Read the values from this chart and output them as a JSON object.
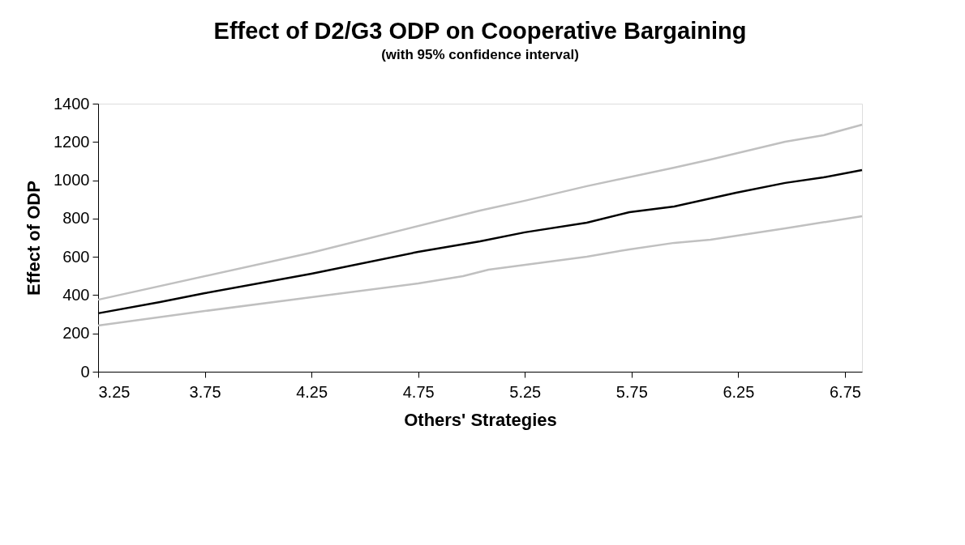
{
  "chart_data": {
    "type": "line",
    "title": "Effect of D2/G3 ODP on Cooperative Bargaining",
    "subtitle": "(with 95% confidence interval)",
    "xlabel": "Others' Strategies",
    "ylabel": "Effect of ODP",
    "xlim": [
      3.25,
      6.83
    ],
    "xticks": [
      3.25,
      3.75,
      4.25,
      4.75,
      5.25,
      5.75,
      6.25,
      6.75
    ],
    "ylim": [
      0,
      1400
    ],
    "yticks": [
      0,
      200,
      400,
      600,
      800,
      1000,
      1200,
      1400
    ],
    "grid": false,
    "marker": "none",
    "line_style": "solid",
    "series": [
      {
        "color": "#c0c0c0",
        "x": [
          3.25,
          4.25,
          5.04,
          5.25,
          5.54,
          5.95,
          6.12,
          6.47,
          6.65,
          6.83
        ],
        "values": [
          376,
          622,
          842,
          893,
          969,
          1066,
          1108,
          1201,
          1235,
          1290
        ]
      },
      {
        "color": "#c0c0c0",
        "x": [
          3.25,
          3.75,
          4.25,
          4.75,
          4.96,
          5.08,
          5.54,
          5.74,
          5.95,
          6.12,
          6.47,
          6.83
        ],
        "values": [
          241,
          317,
          389,
          461,
          499,
          533,
          601,
          639,
          673,
          689,
          749,
          812
        ]
      },
      {
        "color": "#000000",
        "x": [
          3.25,
          3.54,
          3.75,
          4.25,
          4.75,
          5.04,
          5.25,
          5.54,
          5.74,
          5.95,
          6.24,
          6.47,
          6.65,
          6.83
        ],
        "values": [
          305,
          364,
          410,
          512,
          626,
          681,
          728,
          778,
          833,
          863,
          935,
          986,
          1015,
          1053
        ]
      }
    ]
  }
}
